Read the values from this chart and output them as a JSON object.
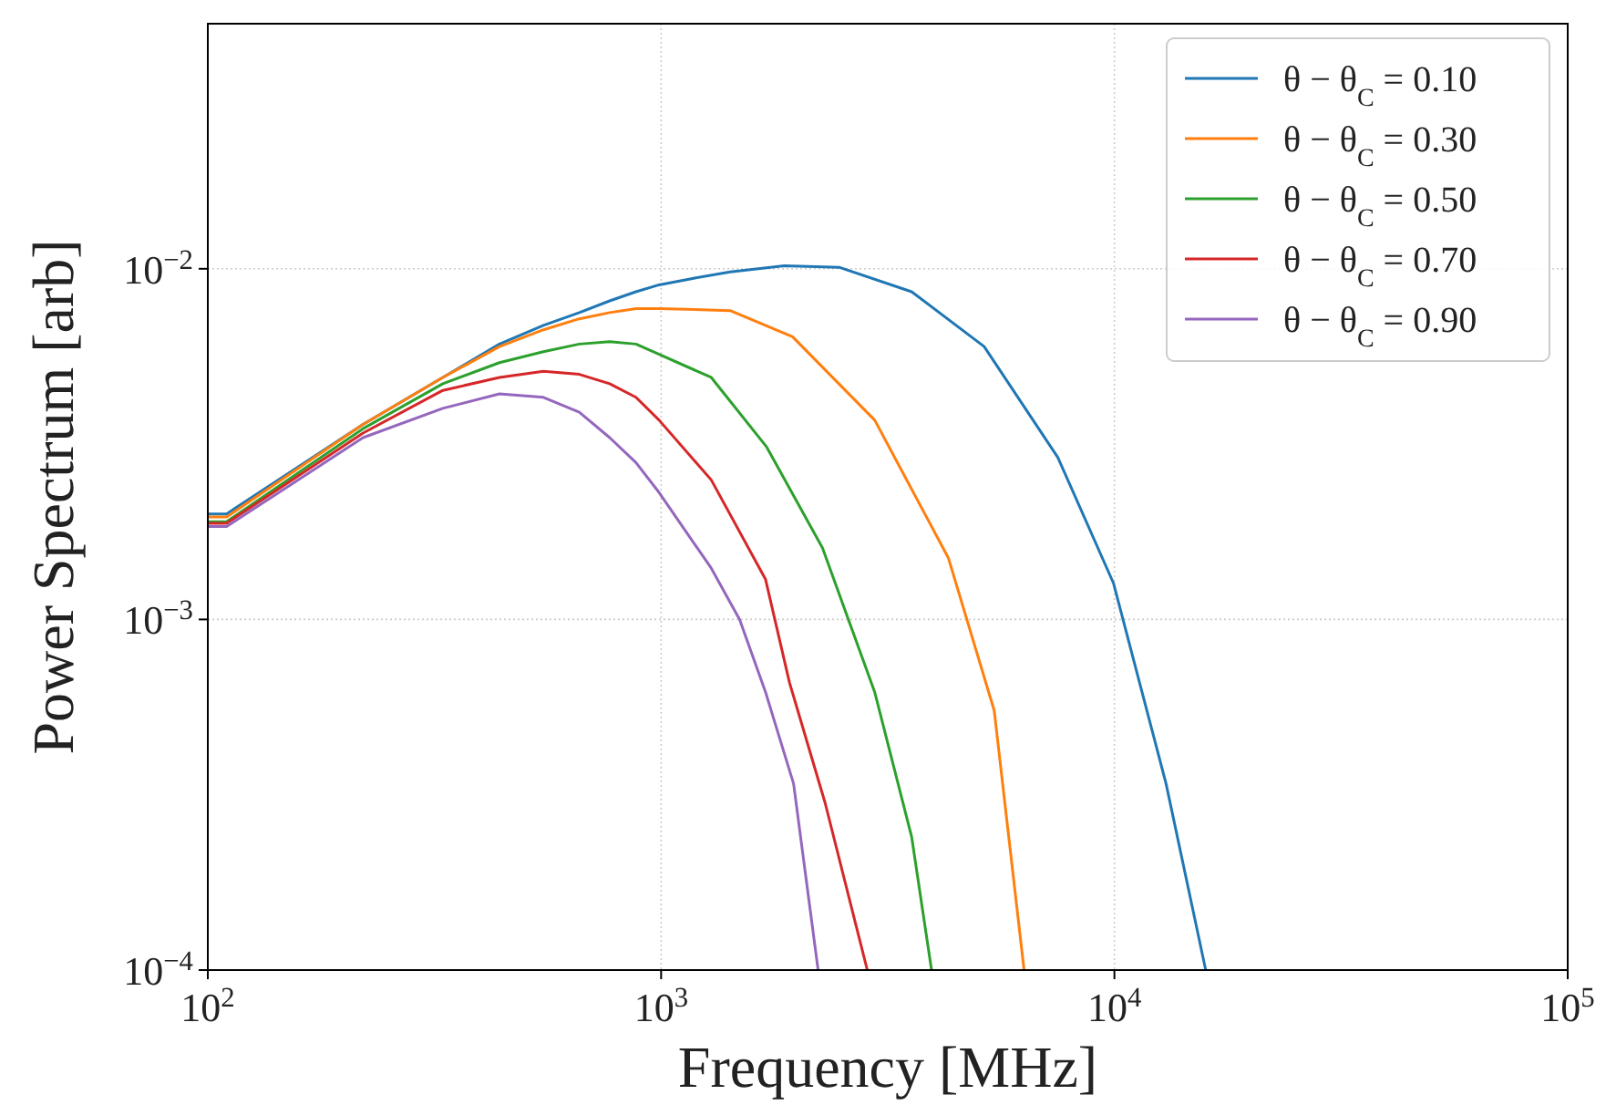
{
  "chart_data": {
    "type": "line",
    "xlabel": "Frequency [MHz]",
    "ylabel": "Power Spectrum [arb]",
    "log": "xy",
    "grid": true,
    "legend": "top right",
    "line_style": "solid",
    "marker": "none",
    "xlim": [
      100,
      100000
    ],
    "ylim": [
      0.0001,
      0.05
    ],
    "xticks": [
      {
        "value": 100,
        "label": "10$^{2}$"
      },
      {
        "value": 1000,
        "label": "10$^{3}$"
      },
      {
        "value": 10000,
        "label": "10$^{4}$"
      },
      {
        "value": 100000,
        "label": "10$^{5}$"
      }
    ],
    "yticks": [
      {
        "value": 0.0001,
        "label": "10$^{−4}$"
      },
      {
        "value": 0.001,
        "label": "10$^{−3}$"
      },
      {
        "value": 0.01,
        "label": "10$^{−2}$"
      }
    ],
    "series": [
      {
        "name": "θ − θ$_{C}$ = 0.10",
        "color": "#1f77b4",
        "x": [
          100,
          110,
          220,
          330,
          440,
          550,
          660,
          770,
          880,
          990,
          1180,
          1420,
          1870,
          2470,
          3570,
          5160,
          7500,
          9950,
          13000,
          15900
        ],
        "values": [
          0.002,
          0.002,
          0.0036,
          0.0049,
          0.0061,
          0.0069,
          0.0075,
          0.0081,
          0.0086,
          0.009,
          0.0094,
          0.0098,
          0.0102,
          0.0101,
          0.0086,
          0.006,
          0.0029,
          0.00127,
          0.00034,
          0.0001
        ]
      },
      {
        "name": "θ − θ$_{C}$ = 0.30",
        "color": "#ff7f0e",
        "x": [
          100,
          110,
          220,
          330,
          440,
          550,
          660,
          770,
          880,
          990,
          1420,
          1950,
          2960,
          4300,
          5430,
          6320
        ],
        "values": [
          0.00196,
          0.00196,
          0.0036,
          0.0049,
          0.006,
          0.0067,
          0.0072,
          0.0075,
          0.0077,
          0.0077,
          0.0076,
          0.0064,
          0.0037,
          0.0015,
          0.00055,
          0.0001
        ]
      },
      {
        "name": "θ − θ$_{C}$ = 0.50",
        "color": "#2ca02c",
        "x": [
          100,
          110,
          220,
          330,
          440,
          550,
          660,
          770,
          880,
          990,
          1290,
          1710,
          2270,
          2960,
          3570,
          3950
        ],
        "values": [
          0.0019,
          0.0019,
          0.0035,
          0.0047,
          0.0054,
          0.0058,
          0.0061,
          0.0062,
          0.0061,
          0.0057,
          0.0049,
          0.0031,
          0.0016,
          0.00062,
          0.00024,
          0.0001
        ]
      },
      {
        "name": "θ − θ$_{C}$ = 0.70",
        "color": "#d62728",
        "x": [
          100,
          110,
          220,
          330,
          440,
          550,
          660,
          770,
          880,
          990,
          1290,
          1700,
          1920,
          2300,
          2850
        ],
        "values": [
          0.00188,
          0.00188,
          0.0034,
          0.0045,
          0.0049,
          0.0051,
          0.005,
          0.0047,
          0.0043,
          0.0037,
          0.0025,
          0.0013,
          0.00066,
          0.0003,
          0.0001
        ]
      },
      {
        "name": "θ − θ$_{C}$ = 0.90",
        "color": "#9467bd",
        "x": [
          100,
          110,
          220,
          330,
          440,
          550,
          660,
          770,
          880,
          990,
          1290,
          1490,
          1700,
          1960,
          2220
        ],
        "values": [
          0.00184,
          0.00184,
          0.0033,
          0.004,
          0.0044,
          0.0043,
          0.0039,
          0.0033,
          0.0028,
          0.0023,
          0.0014,
          0.001,
          0.00062,
          0.00034,
          0.0001
        ]
      }
    ]
  }
}
